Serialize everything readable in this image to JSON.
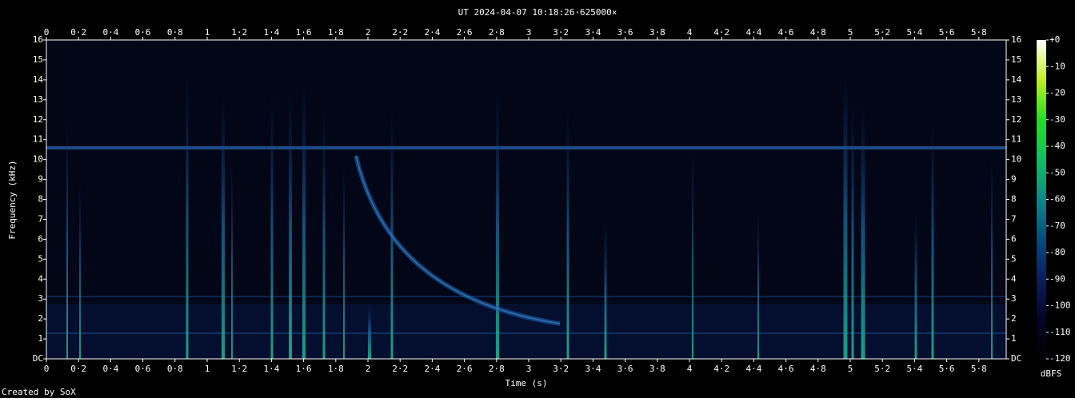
{
  "chart_data": {
    "type": "spectrogram",
    "title": "UT 2024-04-07 10:18:26·625000×",
    "x_label": "Time (s)",
    "y_label": "Frequency (kHz)",
    "footer": "Created by SoX",
    "xlim": [
      0,
      5.97
    ],
    "ylim": [
      0,
      16
    ],
    "xticks": [
      0,
      {
        "value": 0.2,
        "label": "0·2"
      },
      {
        "value": 0.4,
        "label": "0·4"
      },
      {
        "value": 0.6,
        "label": "0·6"
      },
      {
        "value": 0.8,
        "label": "0·8"
      },
      1,
      {
        "value": 1.2,
        "label": "1·2"
      },
      {
        "value": 1.4,
        "label": "1·4"
      },
      {
        "value": 1.6,
        "label": "1·6"
      },
      {
        "value": 1.8,
        "label": "1·8"
      },
      2,
      {
        "value": 2.2,
        "label": "2·2"
      },
      {
        "value": 2.4,
        "label": "2·4"
      },
      {
        "value": 2.6,
        "label": "2·6"
      },
      {
        "value": 2.8,
        "label": "2·8"
      },
      3,
      {
        "value": 3.2,
        "label": "3·2"
      },
      {
        "value": 3.4,
        "label": "3·4"
      },
      {
        "value": 3.6,
        "label": "3·6"
      },
      {
        "value": 3.8,
        "label": "3·8"
      },
      4,
      {
        "value": 4.2,
        "label": "4·2"
      },
      {
        "value": 4.4,
        "label": "4·4"
      },
      {
        "value": 4.6,
        "label": "4·6"
      },
      {
        "value": 4.8,
        "label": "4·8"
      },
      5,
      {
        "value": 5.2,
        "label": "5·2"
      },
      {
        "value": 5.4,
        "label": "5·4"
      },
      {
        "value": 5.6,
        "label": "5·6"
      },
      {
        "value": 5.8,
        "label": "5·8"
      }
    ],
    "yticks": [
      {
        "value": 0,
        "label": "DC"
      },
      1,
      2,
      3,
      4,
      5,
      6,
      7,
      8,
      9,
      10,
      11,
      12,
      13,
      14,
      15,
      16
    ],
    "colorbar": {
      "label": "dBFS",
      "lim": [
        -120,
        0
      ],
      "ticks": [
        {
          "value": 0,
          "label": "+0"
        },
        -10,
        -20,
        -30,
        -40,
        -50,
        -60,
        -70,
        -80,
        -90,
        -100,
        -110,
        -120
      ],
      "colors": [
        "#000000",
        "#05052a",
        "#0a1e5a",
        "#0a4a7a",
        "#0a8a8a",
        "#10c060",
        "#20e020",
        "#c0f020",
        "#ffffff"
      ]
    }
  }
}
